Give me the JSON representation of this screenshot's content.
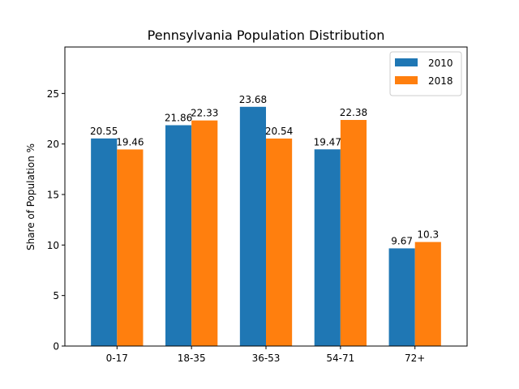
{
  "chart_data": {
    "type": "bar",
    "title": "Pennsylvania Population Distribution",
    "xlabel": "",
    "ylabel": "Share of Population %",
    "categories": [
      "0-17",
      "18-35",
      "36-53",
      "54-71",
      "72+"
    ],
    "series": [
      {
        "name": "2010",
        "values": [
          20.55,
          21.86,
          23.68,
          19.47,
          9.67
        ],
        "labels": [
          "20.55",
          "21.86",
          "23.68",
          "19.47",
          "9.67"
        ],
        "color": "#1f77b4"
      },
      {
        "name": "2018",
        "values": [
          19.46,
          22.33,
          20.54,
          22.38,
          10.3
        ],
        "labels": [
          "19.46",
          "22.33",
          "20.54",
          "22.38",
          "10.3"
        ],
        "color": "#ff7f0e"
      }
    ],
    "ylim": [
      0,
      29.6
    ],
    "yticks": [
      0,
      5,
      10,
      15,
      20,
      25
    ],
    "grid": false,
    "legend_position": "top-right"
  }
}
